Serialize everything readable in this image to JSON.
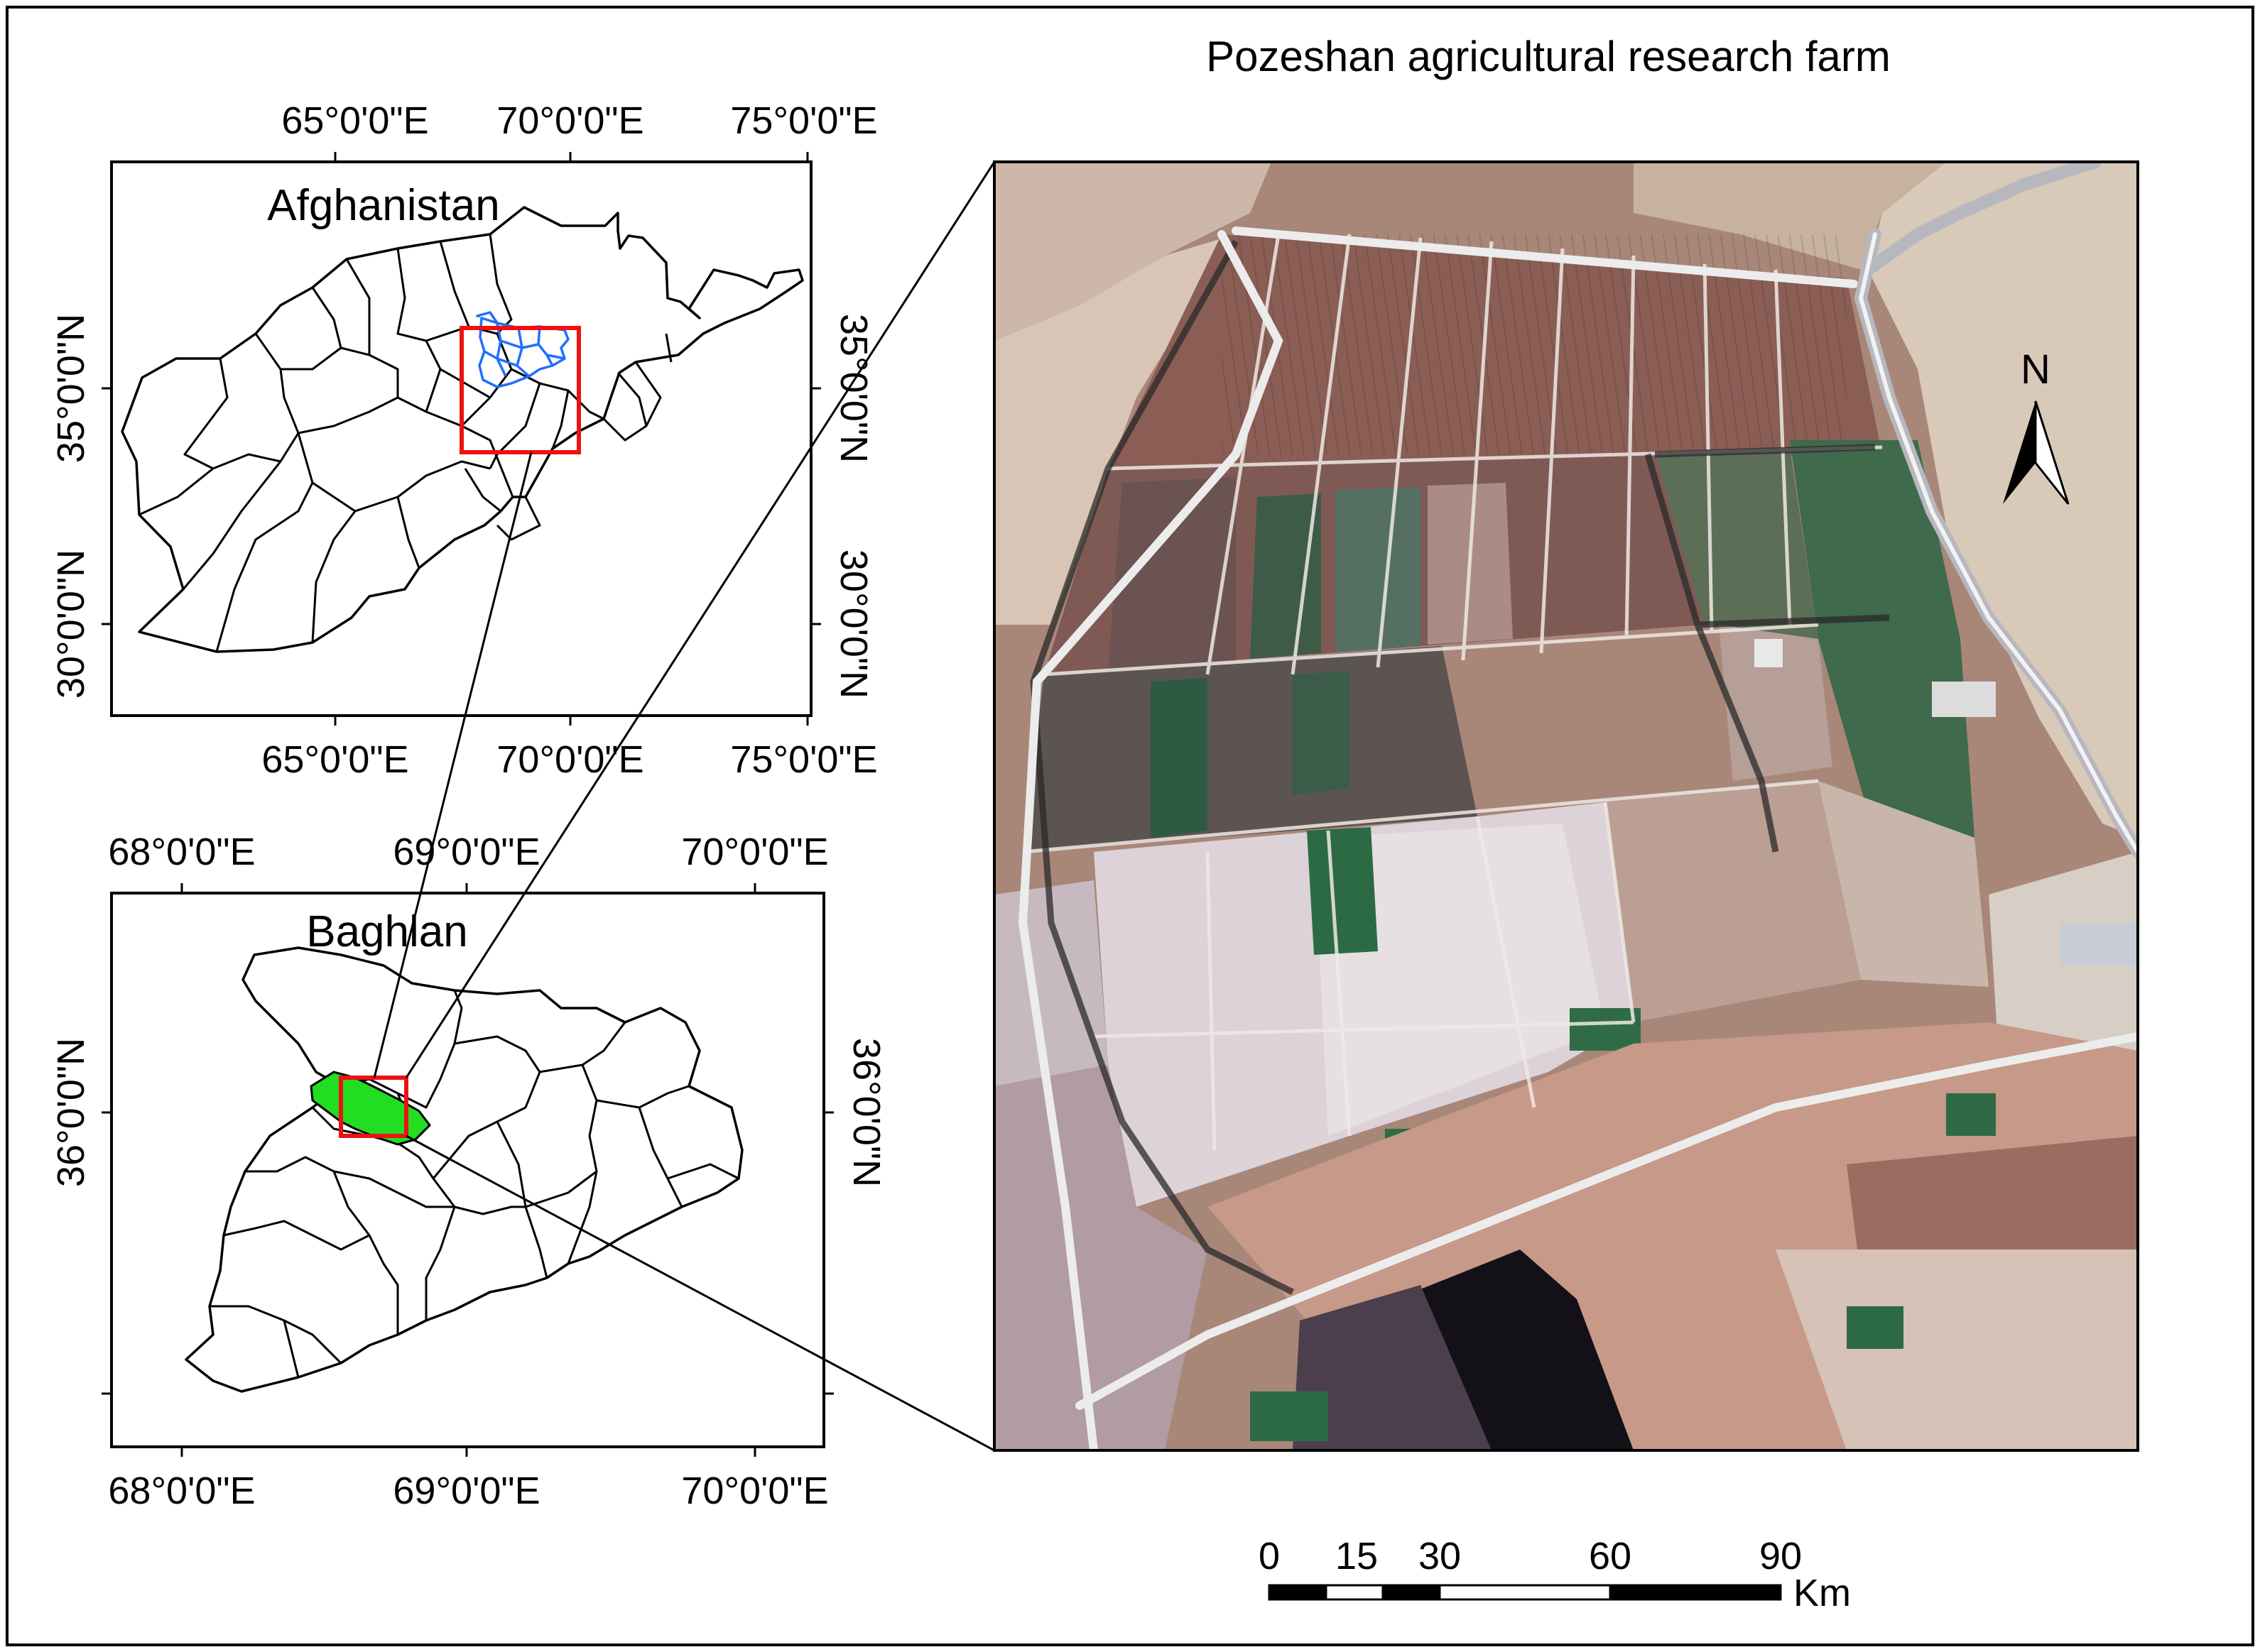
{
  "figure": {
    "title": "Pozeshan agricultural research farm"
  },
  "country_inset": {
    "title": "Afghanistan",
    "top_ticks": [
      "65°0'0\"E",
      "70°0'0\"E",
      "75°0'0\"E"
    ],
    "bottom_ticks": [
      "65°0'0\"E",
      "70°0'0\"E",
      "75°0'0\"E"
    ],
    "left_ticks": [
      "35°0'0\"N",
      "30°0'0\"N"
    ],
    "right_ticks": [
      "35°0'0\"N",
      "30°0'0\"N"
    ],
    "highlight_color": "#1f6fff",
    "selection_color": "#ee1111"
  },
  "province_inset": {
    "title": "Baghlan",
    "top_ticks": [
      "68°0'0\"E",
      "69°0'0\"E",
      "70°0'0\"E"
    ],
    "bottom_ticks": [
      "68°0'0\"E",
      "69°0'0\"E",
      "70°0'0\"E"
    ],
    "left_ticks": [
      "36°0'0\"N"
    ],
    "right_ticks": [
      "36°0'0\"N"
    ],
    "study_area_color": "#22dd22",
    "selection_color": "#ee1111"
  },
  "satellite_panel": {
    "north_arrow": {
      "label": "N",
      "icon": "north-arrow-icon"
    },
    "scale_bar": {
      "labels": [
        "0",
        "15",
        "30",
        "60",
        "90"
      ],
      "unit": "Km"
    },
    "colors": {
      "bare_soil": "#8c6a5e",
      "crop": "#3a6a4c",
      "flooded": "#d9d2d6",
      "road": "#e4e4e4"
    }
  }
}
